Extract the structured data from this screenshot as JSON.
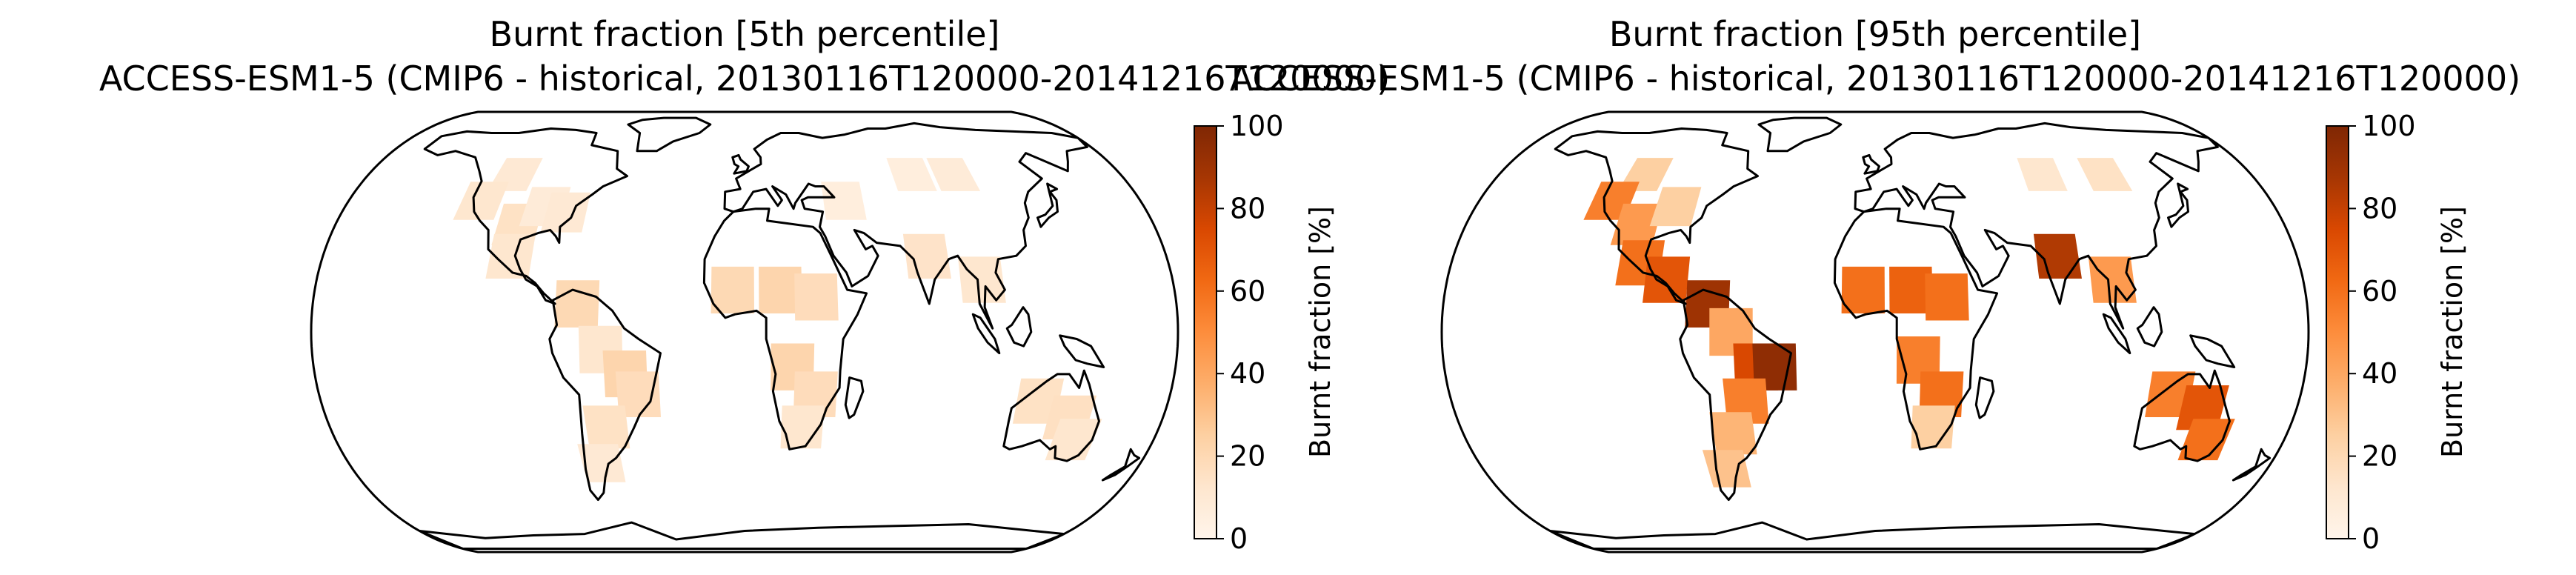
{
  "chart_data": [
    {
      "type": "heatmap",
      "title": "Burnt fraction [5th percentile]",
      "subtitle": "ACCESS-ESM1-5 (CMIP6 - historical, 20130116T120000-20141216T120000)",
      "projection": "Robinson",
      "colormap": "Oranges",
      "colorbar": {
        "label": "Burnt fraction [%]",
        "range": [
          0,
          100
        ],
        "ticks": [
          "0",
          "20",
          "40",
          "60",
          "80",
          "100"
        ]
      },
      "regions": [
        {
          "lon": -110,
          "lat": 50,
          "value": 10
        },
        {
          "lon": -120,
          "lat": 40,
          "value": 12
        },
        {
          "lon": -100,
          "lat": 32,
          "value": 15
        },
        {
          "lon": -90,
          "lat": 38,
          "value": 8
        },
        {
          "lon": -80,
          "lat": 36,
          "value": 10
        },
        {
          "lon": -100,
          "lat": 22,
          "value": 12
        },
        {
          "lon": -70,
          "lat": 8,
          "value": 20
        },
        {
          "lon": -60,
          "lat": -5,
          "value": 12
        },
        {
          "lon": -50,
          "lat": -12,
          "value": 22
        },
        {
          "lon": -45,
          "lat": -18,
          "value": 18
        },
        {
          "lon": -60,
          "lat": -28,
          "value": 15
        },
        {
          "lon": -65,
          "lat": -40,
          "value": 10
        },
        {
          "lon": -5,
          "lat": 12,
          "value": 20
        },
        {
          "lon": 15,
          "lat": 12,
          "value": 22
        },
        {
          "lon": 30,
          "lat": 10,
          "value": 18
        },
        {
          "lon": 20,
          "lat": -10,
          "value": 22
        },
        {
          "lon": 30,
          "lat": -18,
          "value": 18
        },
        {
          "lon": 25,
          "lat": -28,
          "value": 12
        },
        {
          "lon": 45,
          "lat": 40,
          "value": 6
        },
        {
          "lon": 80,
          "lat": 50,
          "value": 6
        },
        {
          "lon": 100,
          "lat": 50,
          "value": 8
        },
        {
          "lon": 78,
          "lat": 22,
          "value": 14
        },
        {
          "lon": 100,
          "lat": 15,
          "value": 12
        },
        {
          "lon": 125,
          "lat": -20,
          "value": 15
        },
        {
          "lon": 140,
          "lat": -25,
          "value": 16
        },
        {
          "lon": 145,
          "lat": -32,
          "value": 12
        }
      ]
    },
    {
      "type": "heatmap",
      "title": "Burnt fraction [95th percentile]",
      "subtitle": "ACCESS-ESM1-5 (CMIP6 - historical, 20130116T120000-20141216T120000)",
      "projection": "Robinson",
      "colormap": "Oranges",
      "colorbar": {
        "label": "Burnt fraction [%]",
        "range": [
          0,
          100
        ],
        "ticks": [
          "0",
          "20",
          "40",
          "60",
          "80",
          "100"
        ]
      },
      "regions": [
        {
          "lon": -110,
          "lat": 50,
          "value": 25
        },
        {
          "lon": -120,
          "lat": 40,
          "value": 55
        },
        {
          "lon": -105,
          "lat": 32,
          "value": 45
        },
        {
          "lon": -90,
          "lat": 38,
          "value": 25
        },
        {
          "lon": -100,
          "lat": 20,
          "value": 60
        },
        {
          "lon": -88,
          "lat": 15,
          "value": 70
        },
        {
          "lon": -70,
          "lat": 8,
          "value": 90
        },
        {
          "lon": -60,
          "lat": 0,
          "value": 40
        },
        {
          "lon": -50,
          "lat": -10,
          "value": 75
        },
        {
          "lon": -42,
          "lat": -10,
          "value": 95
        },
        {
          "lon": -55,
          "lat": -20,
          "value": 55
        },
        {
          "lon": -62,
          "lat": -30,
          "value": 35
        },
        {
          "lon": -68,
          "lat": -42,
          "value": 30
        },
        {
          "lon": -5,
          "lat": 12,
          "value": 60
        },
        {
          "lon": 15,
          "lat": 12,
          "value": 65
        },
        {
          "lon": 30,
          "lat": 10,
          "value": 60
        },
        {
          "lon": 18,
          "lat": -8,
          "value": 55
        },
        {
          "lon": 28,
          "lat": -18,
          "value": 60
        },
        {
          "lon": 25,
          "lat": -28,
          "value": 25
        },
        {
          "lon": 80,
          "lat": 50,
          "value": 12
        },
        {
          "lon": 110,
          "lat": 50,
          "value": 15
        },
        {
          "lon": 78,
          "lat": 22,
          "value": 85
        },
        {
          "lon": 100,
          "lat": 15,
          "value": 45
        },
        {
          "lon": 125,
          "lat": -18,
          "value": 55
        },
        {
          "lon": 140,
          "lat": -22,
          "value": 70
        },
        {
          "lon": 146,
          "lat": -32,
          "value": 60
        }
      ]
    }
  ]
}
